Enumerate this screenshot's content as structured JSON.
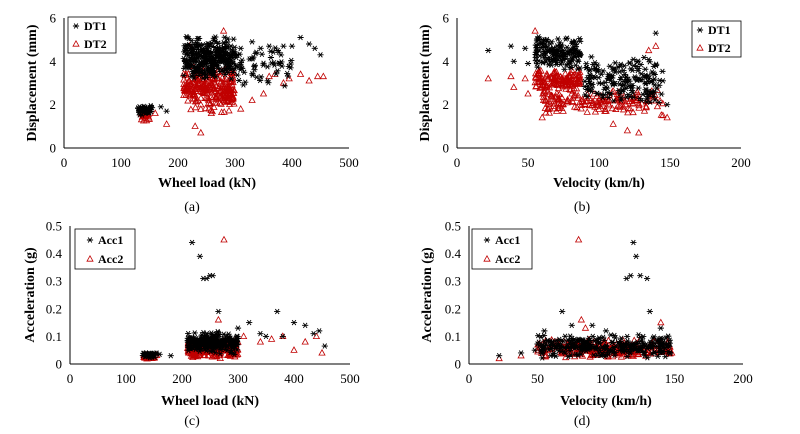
{
  "figure": {
    "background": "#ffffff",
    "colors": {
      "DT1": "#000000",
      "DT2": "#c00000",
      "Acc1": "#000000",
      "Acc2": "#c00000"
    }
  },
  "chart_data": [
    {
      "panel": "a",
      "caption": "(a)",
      "type": "scatter",
      "xlabel": "Wheel load (kN)",
      "ylabel": "Displacement (mm)",
      "xlim": [
        0,
        500
      ],
      "ylim": [
        0,
        6
      ],
      "xticks": [
        "0",
        "100",
        "200",
        "300",
        "400",
        "500"
      ],
      "yticks": [
        "0",
        "2",
        "4",
        "6"
      ],
      "legend_position": "top-left",
      "series": [
        {
          "name": "DT1",
          "marker": "asterisk",
          "color": "#000000",
          "clusters": [
            {
              "x": [
                130,
                155
              ],
              "y": [
                1.5,
                2.0
              ],
              "n": 45
            },
            {
              "x": [
                210,
                300
              ],
              "y": [
                3.1,
                5.2
              ],
              "n": 320
            },
            {
              "x": [
                300,
                400
              ],
              "y": [
                2.8,
                4.8
              ],
              "n": 60
            }
          ],
          "points": [
            [
              170,
              1.9
            ],
            [
              180,
              1.7
            ],
            [
              310,
              4.6
            ],
            [
              330,
              4.9
            ],
            [
              345,
              4.6
            ],
            [
              360,
              4.7
            ],
            [
              375,
              4.5
            ],
            [
              385,
              4.7
            ],
            [
              400,
              4.7
            ],
            [
              415,
              5.1
            ],
            [
              430,
              4.8
            ],
            [
              440,
              4.6
            ],
            [
              450,
              4.3
            ]
          ]
        },
        {
          "name": "DT2",
          "marker": "triangle",
          "color": "#c00000",
          "clusters": [
            {
              "x": [
                135,
                150
              ],
              "y": [
                1.2,
                1.8
              ],
              "n": 35
            },
            {
              "x": [
                210,
                300
              ],
              "y": [
                1.5,
                3.8
              ],
              "n": 280
            }
          ],
          "points": [
            [
              160,
              1.6
            ],
            [
              180,
              1.1
            ],
            [
              220,
              4.7
            ],
            [
              230,
              1.0
            ],
            [
              240,
              0.7
            ],
            [
              280,
              5.4
            ],
            [
              310,
              1.8
            ],
            [
              330,
              2.2
            ],
            [
              350,
              2.5
            ],
            [
              360,
              3.3
            ],
            [
              370,
              3.4
            ],
            [
              385,
              3.0
            ],
            [
              395,
              3.2
            ],
            [
              415,
              3.4
            ],
            [
              430,
              3.1
            ],
            [
              445,
              3.3
            ],
            [
              455,
              3.3
            ]
          ]
        }
      ]
    },
    {
      "panel": "b",
      "caption": "(b)",
      "type": "scatter",
      "xlabel": "Velocity (km/h)",
      "ylabel": "Displacement (mm)",
      "xlim": [
        0,
        200
      ],
      "ylim": [
        0,
        6
      ],
      "xticks": [
        "0",
        "50",
        "100",
        "150",
        "200"
      ],
      "yticks": [
        "0",
        "2",
        "4",
        "6"
      ],
      "legend_position": "top-right",
      "series": [
        {
          "name": "DT1",
          "marker": "asterisk",
          "color": "#000000",
          "clusters": [
            {
              "x": [
                55,
                87
              ],
              "y": [
                3.5,
                5.2
              ],
              "n": 160
            },
            {
              "x": [
                90,
                145
              ],
              "y": [
                2.0,
                4.3
              ],
              "n": 180
            }
          ],
          "points": [
            [
              22,
              4.5
            ],
            [
              38,
              4.7
            ],
            [
              40,
              4.0
            ],
            [
              48,
              4.6
            ],
            [
              50,
              3.9
            ],
            [
              140,
              5.3
            ],
            [
              145,
              3.1
            ],
            [
              148,
              2.0
            ]
          ]
        },
        {
          "name": "DT2",
          "marker": "triangle",
          "color": "#c00000",
          "clusters": [
            {
              "x": [
                55,
                87
              ],
              "y": [
                2.6,
                3.6
              ],
              "n": 150
            },
            {
              "x": [
                60,
                145
              ],
              "y": [
                1.5,
                2.8
              ],
              "n": 170
            }
          ],
          "points": [
            [
              22,
              3.2
            ],
            [
              38,
              3.3
            ],
            [
              40,
              2.8
            ],
            [
              48,
              3.2
            ],
            [
              50,
              2.5
            ],
            [
              55,
              5.4
            ],
            [
              60,
              1.4
            ],
            [
              110,
              1.1
            ],
            [
              120,
              0.8
            ],
            [
              128,
              0.7
            ],
            [
              135,
              4.5
            ],
            [
              140,
              4.7
            ],
            [
              145,
              1.5
            ],
            [
              148,
              1.4
            ]
          ]
        }
      ]
    },
    {
      "panel": "c",
      "caption": "(c)",
      "type": "scatter",
      "xlabel": "Wheel load (kN)",
      "ylabel": "Acceleration (g)",
      "xlim": [
        0,
        500
      ],
      "ylim": [
        0,
        0.5
      ],
      "xticks": [
        "0",
        "100",
        "200",
        "300",
        "400",
        "500"
      ],
      "yticks": [
        "0",
        "0.1",
        "0.2",
        "0.3",
        "0.4",
        "0.5"
      ],
      "legend_position": "top-left",
      "series": [
        {
          "name": "Acc1",
          "marker": "asterisk",
          "color": "#000000",
          "clusters": [
            {
              "x": [
                130,
                155
              ],
              "y": [
                0.02,
                0.045
              ],
              "n": 40
            },
            {
              "x": [
                210,
                300
              ],
              "y": [
                0.03,
                0.12
              ],
              "n": 260
            }
          ],
          "points": [
            [
              160,
              0.035
            ],
            [
              180,
              0.03
            ],
            [
              218,
              0.44
            ],
            [
              232,
              0.39
            ],
            [
              238,
              0.31
            ],
            [
              244,
              0.31
            ],
            [
              250,
              0.32
            ],
            [
              255,
              0.32
            ],
            [
              265,
              0.19
            ],
            [
              300,
              0.13
            ],
            [
              320,
              0.15
            ],
            [
              340,
              0.11
            ],
            [
              350,
              0.1
            ],
            [
              370,
              0.19
            ],
            [
              380,
              0.1
            ],
            [
              400,
              0.15
            ],
            [
              420,
              0.14
            ],
            [
              435,
              0.11
            ],
            [
              445,
              0.12
            ],
            [
              455,
              0.065
            ]
          ]
        },
        {
          "name": "Acc2",
          "marker": "triangle",
          "color": "#c00000",
          "clusters": [
            {
              "x": [
                130,
                155
              ],
              "y": [
                0.015,
                0.035
              ],
              "n": 30
            },
            {
              "x": [
                210,
                300
              ],
              "y": [
                0.02,
                0.09
              ],
              "n": 240
            }
          ],
          "points": [
            [
              275,
              0.45
            ],
            [
              265,
              0.16
            ],
            [
              310,
              0.1
            ],
            [
              340,
              0.08
            ],
            [
              360,
              0.09
            ],
            [
              380,
              0.1
            ],
            [
              400,
              0.05
            ],
            [
              420,
              0.08
            ],
            [
              440,
              0.1
            ],
            [
              450,
              0.04
            ]
          ]
        }
      ]
    },
    {
      "panel": "d",
      "caption": "(d)",
      "type": "scatter",
      "xlabel": "Velocity (km/h)",
      "ylabel": "Acceleration (g)",
      "xlim": [
        0,
        200
      ],
      "ylim": [
        0,
        0.5
      ],
      "xticks": [
        "0",
        "50",
        "100",
        "150",
        "200"
      ],
      "yticks": [
        "0",
        "0.1",
        "0.2",
        "0.3",
        "0.4",
        "0.5"
      ],
      "legend_position": "top-left",
      "series": [
        {
          "name": "Acc1",
          "marker": "asterisk",
          "color": "#000000",
          "clusters": [
            {
              "x": [
                50,
                147
              ],
              "y": [
                0.02,
                0.11
              ],
              "n": 300
            }
          ],
          "points": [
            [
              22,
              0.03
            ],
            [
              38,
              0.04
            ],
            [
              48,
              0.05
            ],
            [
              55,
              0.12
            ],
            [
              68,
              0.19
            ],
            [
              75,
              0.14
            ],
            [
              90,
              0.14
            ],
            [
              100,
              0.12
            ],
            [
              115,
              0.31
            ],
            [
              118,
              0.32
            ],
            [
              120,
              0.44
            ],
            [
              122,
              0.39
            ],
            [
              125,
              0.32
            ],
            [
              130,
              0.31
            ],
            [
              132,
              0.19
            ],
            [
              140,
              0.13
            ]
          ]
        },
        {
          "name": "Acc2",
          "marker": "triangle",
          "color": "#c00000",
          "clusters": [
            {
              "x": [
                50,
                147
              ],
              "y": [
                0.02,
                0.09
              ],
              "n": 240
            }
          ],
          "points": [
            [
              22,
              0.02
            ],
            [
              38,
              0.03
            ],
            [
              80,
              0.45
            ],
            [
              82,
              0.16
            ],
            [
              85,
              0.13
            ],
            [
              140,
              0.15
            ],
            [
              145,
              0.08
            ],
            [
              148,
              0.04
            ]
          ]
        }
      ]
    }
  ]
}
